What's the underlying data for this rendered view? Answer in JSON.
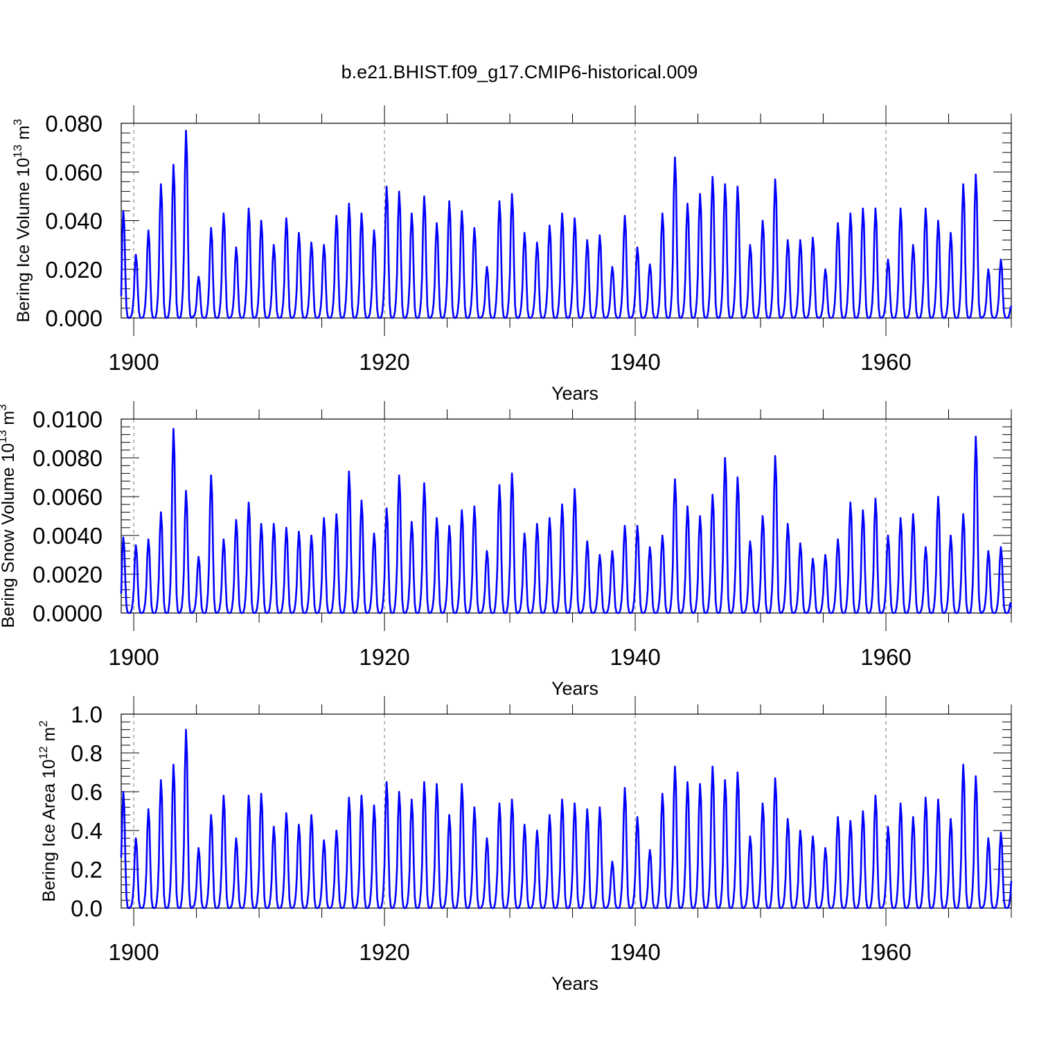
{
  "chart_data": {
    "title": "b.e21.BHIST.f09_g17.CMIP6-historical.009",
    "shared_x": {
      "label": "Years",
      "range": [
        1899.0,
        1970.0
      ],
      "major_ticks": [
        1900,
        1920,
        1940,
        1960
      ],
      "major_tick_labels": [
        "1900",
        "1920",
        "1940",
        "1960"
      ],
      "dashed_gridlines_at": [
        1900,
        1920,
        1940,
        1960
      ]
    },
    "line_color": "#0000ff",
    "sampling": "monthly, one annual cycle per year; winter maximum near March, near-zero late summer",
    "panels": [
      {
        "type": "line",
        "series_name": "Bering Ice Volume",
        "ylabel": "Bering Ice Volume 10",
        "ylabel_exp": "13",
        "ylabel_unit": "m",
        "ylabel_unit_exp": "3",
        "ylim": [
          0.0,
          0.08
        ],
        "yticks": [
          0.0,
          0.02,
          0.04,
          0.06,
          0.08
        ],
        "ytick_labels": [
          "0.000",
          "0.020",
          "0.040",
          "0.060",
          "0.080"
        ],
        "start_value": 0.009,
        "end_value": 0.005,
        "annual_peaks": {
          "years": [
            1899,
            1900,
            1901,
            1902,
            1903,
            1904,
            1905,
            1906,
            1907,
            1908,
            1909,
            1910,
            1911,
            1912,
            1913,
            1914,
            1915,
            1916,
            1917,
            1918,
            1919,
            1920,
            1921,
            1922,
            1923,
            1924,
            1925,
            1926,
            1927,
            1928,
            1929,
            1930,
            1931,
            1932,
            1933,
            1934,
            1935,
            1936,
            1937,
            1938,
            1939,
            1940,
            1941,
            1942,
            1943,
            1944,
            1945,
            1946,
            1947,
            1948,
            1949,
            1950,
            1951,
            1952,
            1953,
            1954,
            1955,
            1956,
            1957,
            1958,
            1959,
            1960,
            1961,
            1962,
            1963,
            1964,
            1965,
            1966,
            1967,
            1968,
            1969
          ],
          "values": [
            0.044,
            0.026,
            0.036,
            0.055,
            0.063,
            0.077,
            0.017,
            0.037,
            0.043,
            0.029,
            0.045,
            0.04,
            0.03,
            0.041,
            0.035,
            0.031,
            0.03,
            0.042,
            0.047,
            0.043,
            0.036,
            0.054,
            0.052,
            0.043,
            0.05,
            0.039,
            0.048,
            0.044,
            0.037,
            0.021,
            0.048,
            0.051,
            0.035,
            0.031,
            0.038,
            0.043,
            0.041,
            0.032,
            0.034,
            0.021,
            0.042,
            0.029,
            0.022,
            0.043,
            0.066,
            0.047,
            0.051,
            0.058,
            0.055,
            0.054,
            0.03,
            0.04,
            0.057,
            0.032,
            0.032,
            0.033,
            0.02,
            0.039,
            0.043,
            0.045,
            0.045,
            0.024,
            0.045,
            0.03,
            0.045,
            0.04,
            0.035,
            0.055,
            0.059,
            0.02,
            0.024
          ]
        }
      },
      {
        "type": "line",
        "series_name": "Bering Snow Volume",
        "ylabel": "Bering Snow Volume 10",
        "ylabel_exp": "13",
        "ylabel_unit": "m",
        "ylabel_unit_exp": "3",
        "ylim": [
          0.0,
          0.01
        ],
        "yticks": [
          0.0,
          0.002,
          0.004,
          0.006,
          0.008,
          0.01
        ],
        "ytick_labels": [
          "0.0000",
          "0.0020",
          "0.0040",
          "0.0060",
          "0.0080",
          "0.0100"
        ],
        "start_value": 0.001,
        "end_value": 0.0003,
        "annual_peaks": {
          "years": [
            1899,
            1900,
            1901,
            1902,
            1903,
            1904,
            1905,
            1906,
            1907,
            1908,
            1909,
            1910,
            1911,
            1912,
            1913,
            1914,
            1915,
            1916,
            1917,
            1918,
            1919,
            1920,
            1921,
            1922,
            1923,
            1924,
            1925,
            1926,
            1927,
            1928,
            1929,
            1930,
            1931,
            1932,
            1933,
            1934,
            1935,
            1936,
            1937,
            1938,
            1939,
            1940,
            1941,
            1942,
            1943,
            1944,
            1945,
            1946,
            1947,
            1948,
            1949,
            1950,
            1951,
            1952,
            1953,
            1954,
            1955,
            1956,
            1957,
            1958,
            1959,
            1960,
            1961,
            1962,
            1963,
            1964,
            1965,
            1966,
            1967,
            1968,
            1969
          ],
          "values": [
            0.0039,
            0.0035,
            0.0038,
            0.0052,
            0.0095,
            0.0063,
            0.0029,
            0.0071,
            0.0038,
            0.0048,
            0.0057,
            0.0046,
            0.0046,
            0.0044,
            0.0042,
            0.004,
            0.0049,
            0.0051,
            0.0073,
            0.0058,
            0.0041,
            0.0054,
            0.0071,
            0.0047,
            0.0067,
            0.0049,
            0.0045,
            0.0053,
            0.0055,
            0.0032,
            0.0066,
            0.0072,
            0.0041,
            0.0046,
            0.0049,
            0.0056,
            0.0064,
            0.0037,
            0.003,
            0.0032,
            0.0045,
            0.0045,
            0.0034,
            0.004,
            0.0069,
            0.0055,
            0.005,
            0.0061,
            0.008,
            0.007,
            0.0037,
            0.005,
            0.0081,
            0.0046,
            0.0036,
            0.0028,
            0.003,
            0.0038,
            0.0057,
            0.0053,
            0.0059,
            0.004,
            0.0049,
            0.0051,
            0.0034,
            0.006,
            0.004,
            0.0051,
            0.0091,
            0.0032,
            0.0034
          ]
        }
      },
      {
        "type": "line",
        "series_name": "Bering Ice Area",
        "ylabel": "Bering Ice Area 10",
        "ylabel_exp": "12",
        "ylabel_unit": "m",
        "ylabel_unit_exp": "2",
        "ylim": [
          0.0,
          1.0
        ],
        "yticks": [
          0.0,
          0.2,
          0.4,
          0.6,
          0.8,
          1.0
        ],
        "ytick_labels": [
          "0.0",
          "0.2",
          "0.4",
          "0.6",
          "0.8",
          "1.0"
        ],
        "start_value": 0.26,
        "end_value": 0.14,
        "annual_peaks": {
          "years": [
            1899,
            1900,
            1901,
            1902,
            1903,
            1904,
            1905,
            1906,
            1907,
            1908,
            1909,
            1910,
            1911,
            1912,
            1913,
            1914,
            1915,
            1916,
            1917,
            1918,
            1919,
            1920,
            1921,
            1922,
            1923,
            1924,
            1925,
            1926,
            1927,
            1928,
            1929,
            1930,
            1931,
            1932,
            1933,
            1934,
            1935,
            1936,
            1937,
            1938,
            1939,
            1940,
            1941,
            1942,
            1943,
            1944,
            1945,
            1946,
            1947,
            1948,
            1949,
            1950,
            1951,
            1952,
            1953,
            1954,
            1955,
            1956,
            1957,
            1958,
            1959,
            1960,
            1961,
            1962,
            1963,
            1964,
            1965,
            1966,
            1967,
            1968,
            1969
          ],
          "values": [
            0.6,
            0.36,
            0.51,
            0.66,
            0.74,
            0.92,
            0.31,
            0.48,
            0.58,
            0.36,
            0.58,
            0.59,
            0.42,
            0.49,
            0.43,
            0.48,
            0.35,
            0.4,
            0.57,
            0.58,
            0.53,
            0.65,
            0.6,
            0.56,
            0.65,
            0.64,
            0.48,
            0.64,
            0.52,
            0.36,
            0.54,
            0.56,
            0.43,
            0.4,
            0.48,
            0.56,
            0.54,
            0.51,
            0.52,
            0.24,
            0.62,
            0.47,
            0.3,
            0.59,
            0.73,
            0.65,
            0.64,
            0.73,
            0.66,
            0.7,
            0.37,
            0.54,
            0.67,
            0.46,
            0.4,
            0.37,
            0.31,
            0.47,
            0.45,
            0.5,
            0.58,
            0.42,
            0.54,
            0.47,
            0.57,
            0.56,
            0.46,
            0.74,
            0.68,
            0.36,
            0.39
          ]
        }
      }
    ]
  }
}
